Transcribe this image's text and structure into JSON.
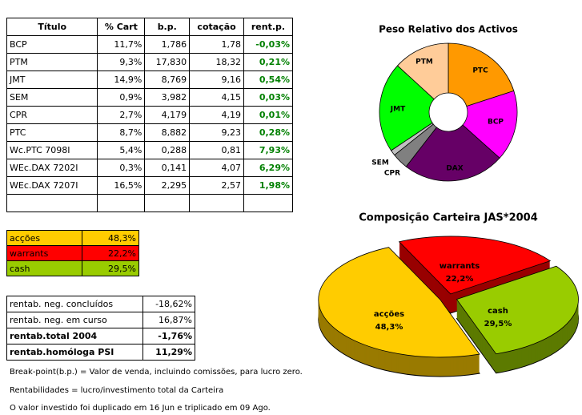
{
  "table": {
    "headers": [
      "Título",
      "% Cart",
      "b.p.",
      "cotação",
      "rent.p."
    ],
    "rows": [
      [
        "BCP",
        "11,7%",
        "1,786",
        "1,78",
        "-0,03%"
      ],
      [
        "PTM",
        "9,3%",
        "17,830",
        "18,32",
        "0,21%"
      ],
      [
        "JMT",
        "14,9%",
        "8,769",
        "9,16",
        "0,54%"
      ],
      [
        "SEM",
        "0,9%",
        "3,982",
        "4,15",
        "0,03%"
      ],
      [
        "CPR",
        "2,7%",
        "4,179",
        "4,19",
        "0,01%"
      ],
      [
        "PTC",
        "8,7%",
        "8,882",
        "9,23",
        "0,28%"
      ],
      [
        "Wc.PTC 7098I",
        "5,4%",
        "0,288",
        "0,81",
        "7,93%"
      ],
      [
        "WEc.DAX 7202I",
        "0,3%",
        "0,141",
        "4,07",
        "6,29%"
      ],
      [
        "WEc.DAX 7207I",
        "16,5%",
        "2,295",
        "2,57",
        "1,98%"
      ]
    ]
  },
  "allocation": {
    "rows": [
      [
        "acções",
        "48,3%"
      ],
      [
        "warrants",
        "22,2%"
      ],
      [
        "cash",
        "29,5%"
      ]
    ]
  },
  "summary": {
    "rows": [
      [
        "rentab. neg. concluídos",
        "-18,62%"
      ],
      [
        "rentab. neg. em curso",
        "16,87%"
      ],
      [
        "rentab.total 2004",
        "-1,76%"
      ],
      [
        "rentab.homóloga PSI",
        "11,29%"
      ]
    ]
  },
  "notes": [
    "Break-point(b.p.) = Valor de venda, incluindo comissões, para lucro zero.",
    "Rentabilidades = lucro/investimento total da Carteira",
    "O valor investido foi duplicado em 16 Jun e triplicado em 09 Ago."
  ],
  "chart_data": [
    {
      "type": "pie",
      "title": "Peso Relativo dos Activos",
      "donut": true,
      "categories": [
        "PTC",
        "BCP",
        "DAX",
        "CPR",
        "SEM",
        "JMT",
        "PTM"
      ],
      "values": [
        20,
        16.6,
        23.9,
        3.8,
        1.3,
        21.2,
        13.2
      ],
      "colors": [
        "#ff9900",
        "#ff00ff",
        "#660066",
        "#808080",
        "#c0c0c0",
        "#00ff00",
        "#ffcc99"
      ]
    },
    {
      "type": "pie",
      "title": "Composição Carteira JAS*2004",
      "three_d": true,
      "exploded": true,
      "categories": [
        "warrants",
        "cash",
        "acções"
      ],
      "values": [
        22.2,
        29.5,
        48.3
      ],
      "value_labels": [
        "22,2%",
        "29,5%",
        "48,3%"
      ],
      "colors": [
        "#ff0000",
        "#99cc00",
        "#ffcc00"
      ]
    }
  ]
}
